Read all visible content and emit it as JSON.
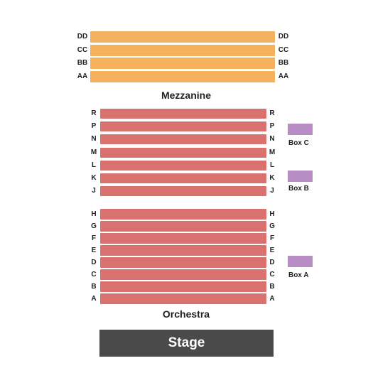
{
  "mezzanine": {
    "label": "Mezzanine",
    "rows": [
      "DD",
      "CC",
      "BB",
      "AA"
    ]
  },
  "upper_orchestra": {
    "rows": [
      "R",
      "P",
      "N",
      "M",
      "L",
      "K",
      "J"
    ]
  },
  "orchestra": {
    "label": "Orchestra",
    "rows": [
      "H",
      "G",
      "F",
      "E",
      "D",
      "C",
      "B",
      "A"
    ]
  },
  "boxes": [
    {
      "label": "Box C"
    },
    {
      "label": "Box B"
    },
    {
      "label": "Box A"
    }
  ],
  "stage": {
    "label": "Stage"
  },
  "colors": {
    "mezzanine": "#f4b15e",
    "orchestra": "#d9726f",
    "box": "#b78cc4",
    "stage": "#4a4a4a"
  }
}
